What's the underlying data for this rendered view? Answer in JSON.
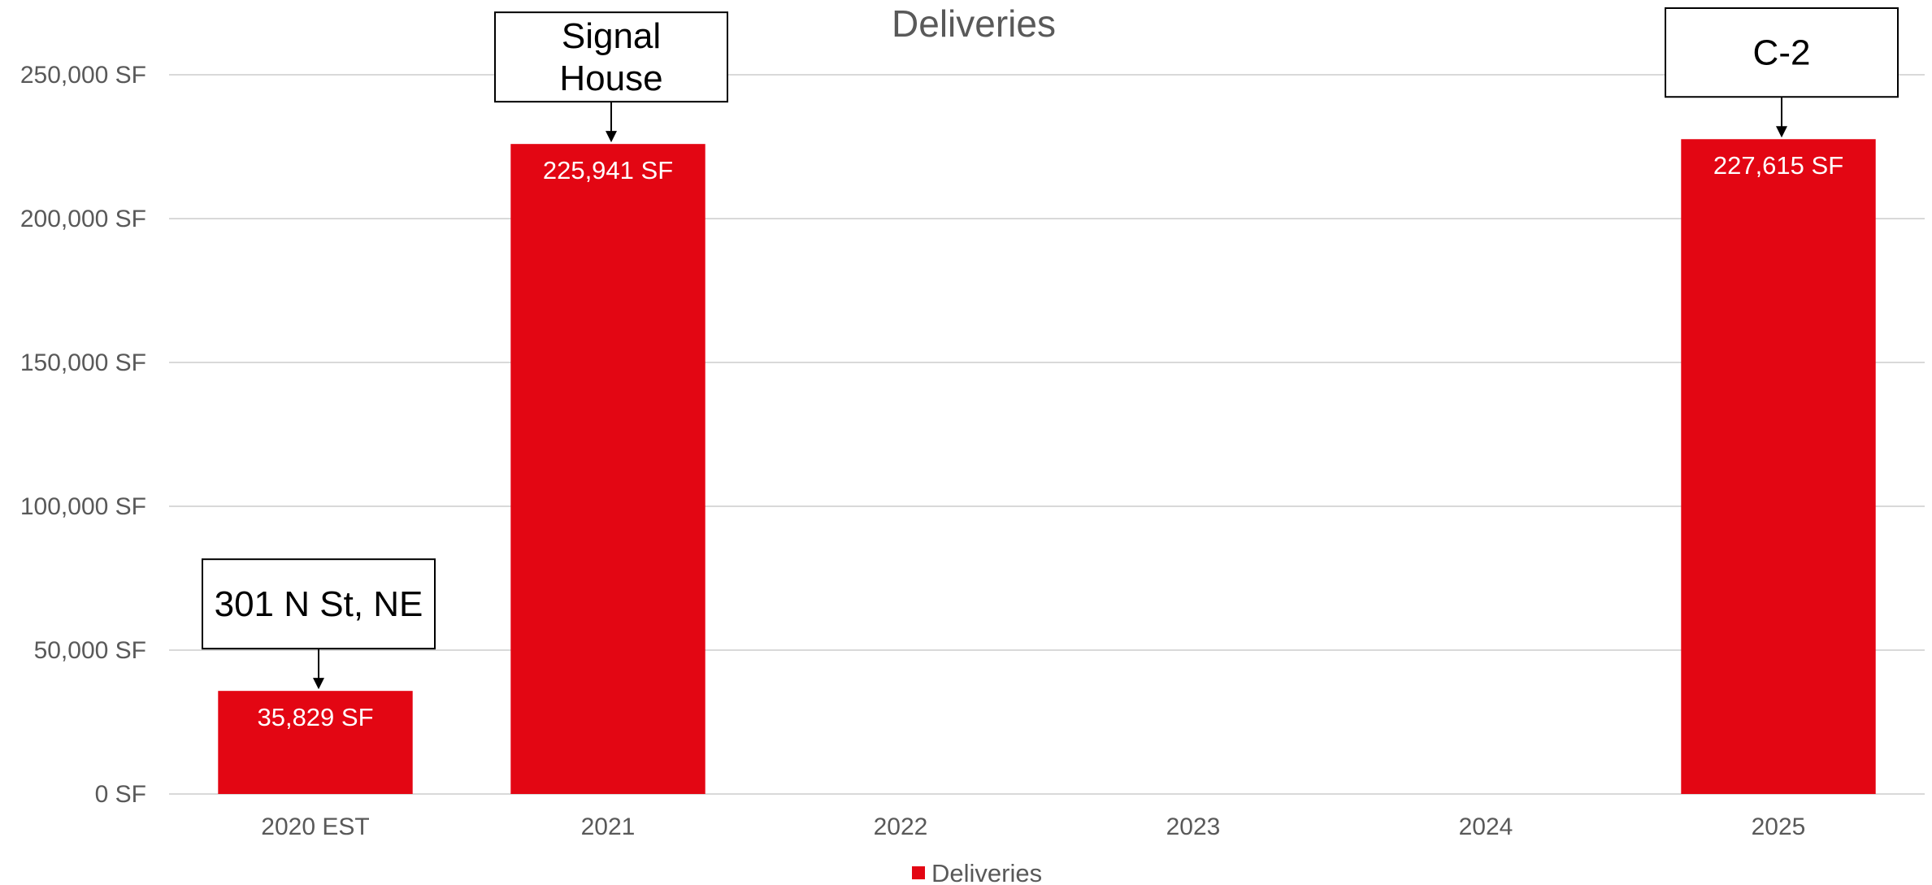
{
  "chart_data": {
    "type": "bar",
    "title": "Deliveries",
    "categories": [
      "2020 EST",
      "2021",
      "2022",
      "2023",
      "2024",
      "2025"
    ],
    "series": [
      {
        "name": "Deliveries",
        "values": [
          35829,
          225941,
          0,
          0,
          0,
          227615
        ],
        "data_labels": [
          "35,829 SF",
          "225,941 SF",
          "",
          "",
          "",
          "227,615 SF"
        ],
        "color": "#e30613"
      }
    ],
    "y_ticks": [
      "0 SF",
      "50,000 SF",
      "100,000 SF",
      "150,000 SF",
      "200,000 SF",
      "250,000 SF"
    ],
    "ylim": [
      0,
      250000
    ],
    "grid": true,
    "legend_position": "bottom",
    "annotations": [
      {
        "category_index": 0,
        "lines": [
          "301 N St, NE"
        ]
      },
      {
        "category_index": 1,
        "lines": [
          "Signal",
          "House"
        ]
      },
      {
        "category_index": 5,
        "lines": [
          "C-2"
        ]
      }
    ]
  },
  "colors": {
    "bar": "#e30613",
    "grid": "#d9d9d9",
    "axis_text": "#595959"
  }
}
